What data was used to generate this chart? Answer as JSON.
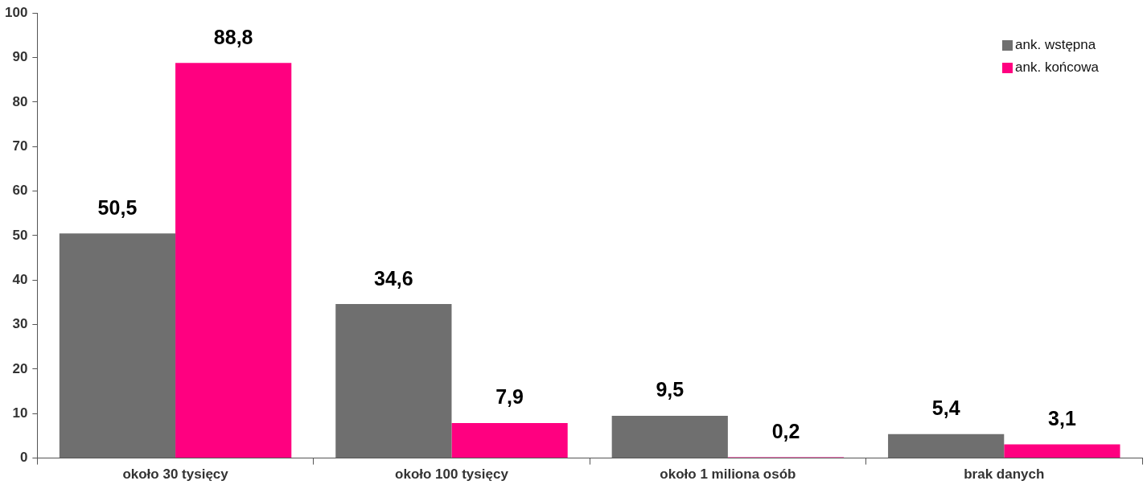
{
  "chart_data": {
    "type": "bar",
    "categories": [
      "około 30 tysięcy",
      "około 100 tysięcy",
      "około 1 miliona osób",
      "brak danych"
    ],
    "series": [
      {
        "name": "ank. wstępna",
        "color": "#6f6f6f",
        "values": [
          50.5,
          34.6,
          9.5,
          5.4
        ],
        "value_labels": [
          "50,5",
          "34,6",
          "9,5",
          "5,4"
        ]
      },
      {
        "name": "ank. końcowa",
        "color": "#ff0080",
        "values": [
          88.8,
          7.9,
          0.2,
          3.1
        ],
        "value_labels": [
          "88,8",
          "7,9",
          "0,2",
          "3,1"
        ]
      }
    ],
    "ylim": [
      0,
      100
    ],
    "yticks": [
      0,
      10,
      20,
      30,
      40,
      50,
      60,
      70,
      80,
      90,
      100
    ],
    "grid": false,
    "legend": "top right"
  }
}
